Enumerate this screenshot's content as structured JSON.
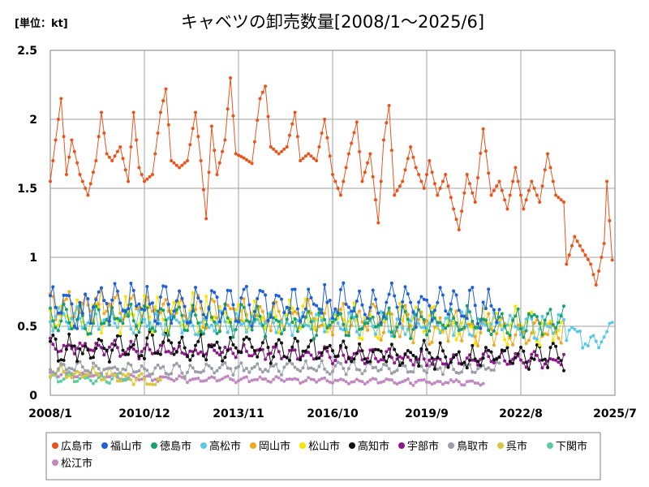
{
  "chart_data": {
    "type": "line",
    "unit": "[単位：kt]",
    "title": "キャベツの卸売数量[2008/1～2025/6]",
    "xlabel": "",
    "ylabel": "",
    "ylim": [
      0,
      2.5
    ],
    "y_ticks": [
      "0",
      "0.5",
      "1",
      "1.5",
      "2",
      "2.5"
    ],
    "x_range": [
      "2008-01",
      "2025-07"
    ],
    "x_ticks": [
      "2008/1",
      "2010/12",
      "2013/11",
      "2016/10",
      "2019/9",
      "2022/8",
      "2025/7"
    ],
    "grid": true,
    "legend_position": "bottom",
    "series": [
      {
        "name": "広島市",
        "color": "#E8541C",
        "end": "2025-06",
        "anchors": [
          [
            "2008-01",
            1.55
          ],
          [
            "2008-03",
            1.85
          ],
          [
            "2008-05",
            2.15
          ],
          [
            "2008-07",
            1.6
          ],
          [
            "2008-09",
            1.85
          ],
          [
            "2008-12",
            1.6
          ],
          [
            "2009-03",
            1.45
          ],
          [
            "2009-06",
            1.7
          ],
          [
            "2009-08",
            2.05
          ],
          [
            "2009-10",
            1.75
          ],
          [
            "2009-12",
            1.7
          ],
          [
            "2010-03",
            1.8
          ],
          [
            "2010-06",
            1.55
          ],
          [
            "2010-08",
            2.05
          ],
          [
            "2010-10",
            1.65
          ],
          [
            "2010-12",
            1.55
          ],
          [
            "2011-03",
            1.6
          ],
          [
            "2011-06",
            2.05
          ],
          [
            "2011-08",
            2.22
          ],
          [
            "2011-10",
            1.7
          ],
          [
            "2012-01",
            1.65
          ],
          [
            "2012-04",
            1.7
          ],
          [
            "2012-07",
            2.05
          ],
          [
            "2012-09",
            1.7
          ],
          [
            "2012-11",
            1.28
          ],
          [
            "2013-01",
            1.95
          ],
          [
            "2013-03",
            1.6
          ],
          [
            "2013-06",
            1.85
          ],
          [
            "2013-08",
            2.3
          ],
          [
            "2013-10",
            1.75
          ],
          [
            "2014-01",
            1.72
          ],
          [
            "2014-04",
            1.68
          ],
          [
            "2014-07",
            2.15
          ],
          [
            "2014-09",
            2.24
          ],
          [
            "2014-11",
            1.8
          ],
          [
            "2015-02",
            1.75
          ],
          [
            "2015-05",
            1.8
          ],
          [
            "2015-08",
            2.05
          ],
          [
            "2015-10",
            1.7
          ],
          [
            "2016-01",
            1.75
          ],
          [
            "2016-04",
            1.7
          ],
          [
            "2016-07",
            2.0
          ],
          [
            "2016-10",
            1.6
          ],
          [
            "2017-01",
            1.45
          ],
          [
            "2017-04",
            1.75
          ],
          [
            "2017-07",
            1.98
          ],
          [
            "2017-09",
            1.55
          ],
          [
            "2017-12",
            1.75
          ],
          [
            "2018-03",
            1.25
          ],
          [
            "2018-05",
            1.85
          ],
          [
            "2018-07",
            2.1
          ],
          [
            "2018-09",
            1.45
          ],
          [
            "2018-12",
            1.55
          ],
          [
            "2019-03",
            1.8
          ],
          [
            "2019-05",
            1.65
          ],
          [
            "2019-08",
            1.5
          ],
          [
            "2019-10",
            1.7
          ],
          [
            "2020-01",
            1.45
          ],
          [
            "2020-04",
            1.6
          ],
          [
            "2020-07",
            1.35
          ],
          [
            "2020-09",
            1.2
          ],
          [
            "2020-12",
            1.6
          ],
          [
            "2021-03",
            1.4
          ],
          [
            "2021-06",
            1.93
          ],
          [
            "2021-09",
            1.45
          ],
          [
            "2021-12",
            1.55
          ],
          [
            "2022-03",
            1.35
          ],
          [
            "2022-06",
            1.65
          ],
          [
            "2022-09",
            1.35
          ],
          [
            "2022-12",
            1.55
          ],
          [
            "2023-03",
            1.4
          ],
          [
            "2023-06",
            1.75
          ],
          [
            "2023-09",
            1.45
          ],
          [
            "2023-12",
            1.4
          ],
          [
            "2024-01",
            0.95
          ],
          [
            "2024-04",
            1.15
          ],
          [
            "2024-07",
            1.05
          ],
          [
            "2024-10",
            0.95
          ],
          [
            "2024-12",
            0.8
          ],
          [
            "2025-03",
            1.1
          ],
          [
            "2025-04",
            1.55
          ],
          [
            "2025-06",
            0.98
          ]
        ]
      },
      {
        "name": "福山市",
        "color": "#1F5FD8",
        "end": "2021-12",
        "anchors": [
          [
            "2008-01",
            0.62
          ],
          [
            "2008-06",
            0.7
          ],
          [
            "2009-01",
            0.6
          ],
          [
            "2009-06",
            0.68
          ],
          [
            "2012-01",
            0.64
          ],
          [
            "2015-01",
            0.65
          ],
          [
            "2018-01",
            0.66
          ],
          [
            "2020-01",
            0.65
          ],
          [
            "2021-12",
            0.62
          ]
        ],
        "amp": 0.13,
        "offset": 0.9
      },
      {
        "name": "徳島市",
        "color": "#18A070",
        "end": "2023-12",
        "anchors": [
          [
            "2008-01",
            0.55
          ],
          [
            "2012-01",
            0.55
          ],
          [
            "2016-01",
            0.53
          ],
          [
            "2020-01",
            0.53
          ],
          [
            "2023-12",
            0.55
          ]
        ],
        "amp": 0.1,
        "offset": 2.3
      },
      {
        "name": "高松市",
        "color": "#5BC8E8",
        "end": "2025-06",
        "anchors": [
          [
            "2008-01",
            0.55
          ],
          [
            "2014-01",
            0.52
          ],
          [
            "2020-01",
            0.52
          ],
          [
            "2023-12",
            0.5
          ],
          [
            "2024-12",
            0.38
          ],
          [
            "2025-06",
            0.5
          ]
        ],
        "amp": 0.08,
        "offset": 4.1
      },
      {
        "name": "岡山市",
        "color": "#F0A820",
        "end": "2023-12",
        "anchors": [
          [
            "2008-01",
            0.62
          ],
          [
            "2010-01",
            0.66
          ],
          [
            "2013-01",
            0.6
          ],
          [
            "2017-01",
            0.55
          ],
          [
            "2020-01",
            0.5
          ],
          [
            "2023-12",
            0.48
          ]
        ],
        "amp": 0.11,
        "offset": 1.2
      },
      {
        "name": "松山市",
        "color": "#F5E400",
        "end": "2023-12",
        "anchors": [
          [
            "2008-01",
            0.55
          ],
          [
            "2012-01",
            0.6
          ],
          [
            "2016-01",
            0.55
          ],
          [
            "2020-01",
            0.52
          ],
          [
            "2023-12",
            0.5
          ]
        ],
        "amp": 0.12,
        "offset": 3.0
      },
      {
        "name": "高知市",
        "color": "#111111",
        "end": "2023-12",
        "anchors": [
          [
            "2008-01",
            0.32
          ],
          [
            "2012-01",
            0.36
          ],
          [
            "2016-01",
            0.33
          ],
          [
            "2020-01",
            0.28
          ],
          [
            "2023-12",
            0.27
          ]
        ],
        "amp": 0.09,
        "offset": 0.4
      },
      {
        "name": "宇部市",
        "color": "#8B1A8B",
        "end": "2023-12",
        "anchors": [
          [
            "2008-01",
            0.35
          ],
          [
            "2012-01",
            0.32
          ],
          [
            "2016-01",
            0.3
          ],
          [
            "2020-01",
            0.26
          ],
          [
            "2023-12",
            0.25
          ]
        ],
        "amp": 0.05,
        "offset": 1.7
      },
      {
        "name": "鳥取市",
        "color": "#9A9FA8",
        "end": "2021-12",
        "anchors": [
          [
            "2008-01",
            0.2
          ],
          [
            "2012-01",
            0.18
          ],
          [
            "2016-01",
            0.2
          ],
          [
            "2021-12",
            0.2
          ]
        ],
        "amp": 0.04,
        "offset": 2.8
      },
      {
        "name": "呉市",
        "color": "#D8C840",
        "end": "2011-06",
        "anchors": [
          [
            "2008-01",
            0.17
          ],
          [
            "2010-01",
            0.15
          ],
          [
            "2011-06",
            0.08
          ]
        ],
        "amp": 0.04,
        "offset": 3.6
      },
      {
        "name": "下関市",
        "color": "#5FCCA0",
        "end": "2010-06",
        "anchors": [
          [
            "2008-01",
            0.13
          ],
          [
            "2009-06",
            0.12
          ],
          [
            "2010-06",
            0.12
          ]
        ],
        "amp": 0.03,
        "offset": 0.8
      },
      {
        "name": "松江市",
        "color": "#C08AC0",
        "end": "2021-06",
        "anchors": [
          [
            "2008-01",
            0.16
          ],
          [
            "2011-01",
            0.12
          ],
          [
            "2016-01",
            0.11
          ],
          [
            "2021-06",
            0.09
          ]
        ],
        "amp": 0.02,
        "offset": 1.5
      }
    ]
  }
}
